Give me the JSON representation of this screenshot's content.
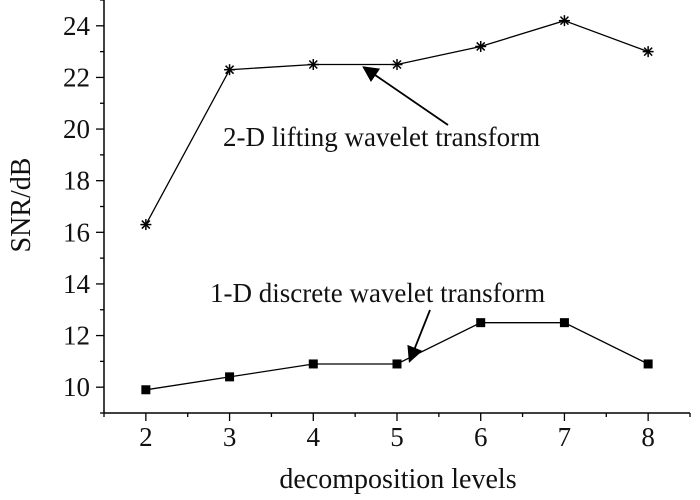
{
  "chart_data": {
    "type": "line",
    "title": "",
    "xlabel": "decomposition levels",
    "ylabel": "SNR/dB",
    "x": [
      2,
      3,
      4,
      5,
      6,
      7,
      8
    ],
    "xlim": [
      1.5,
      8.5
    ],
    "ylim": [
      9,
      25
    ],
    "xticks": [
      2,
      3,
      4,
      5,
      6,
      7,
      8
    ],
    "yticks": [
      10,
      12,
      14,
      16,
      18,
      20,
      22,
      24
    ],
    "grid": false,
    "series": [
      {
        "values": [
          16.3,
          22.3,
          22.5,
          22.5,
          23.2,
          24.2,
          23.0
        ],
        "marker": "asterisk",
        "color": "#000000"
      },
      {
        "values": [
          9.9,
          10.4,
          10.9,
          10.9,
          12.5,
          12.5,
          10.9
        ],
        "marker": "square",
        "color": "#000000"
      }
    ],
    "annotations": [
      {
        "text": "2-D lifting wavelet transform",
        "arrow_to": [
          4.6,
          22.4
        ]
      },
      {
        "text": "1-D discrete wavelet transform",
        "arrow_to": [
          5.15,
          11.0
        ]
      }
    ]
  }
}
